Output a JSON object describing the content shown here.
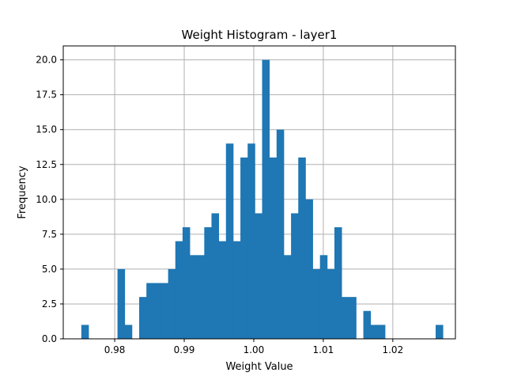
{
  "chart_data": {
    "type": "bar",
    "title": "Weight Histogram - layer1",
    "xlabel": "Weight Value",
    "ylabel": "Frequency",
    "xlim": [
      0.9726,
      1.029
    ],
    "ylim": [
      0,
      21
    ],
    "grid": true,
    "color": "#1f77b4",
    "bin_start": 0.9752,
    "bin_width": 0.00104,
    "counts": [
      1,
      0,
      0,
      0,
      0,
      5,
      1,
      0,
      3,
      4,
      4,
      4,
      5,
      7,
      8,
      6,
      6,
      8,
      9,
      7,
      14,
      7,
      13,
      14,
      9,
      20,
      13,
      15,
      6,
      9,
      13,
      10,
      5,
      6,
      5,
      8,
      3,
      3,
      0,
      2,
      1,
      1,
      0,
      0,
      0,
      0,
      0,
      0,
      0,
      1
    ],
    "xticks": [
      {
        "value": 0.98,
        "label": "0.98"
      },
      {
        "value": 0.99,
        "label": "0.99"
      },
      {
        "value": 1.0,
        "label": "1.00"
      },
      {
        "value": 1.01,
        "label": "1.01"
      },
      {
        "value": 1.02,
        "label": "1.02"
      }
    ],
    "yticks": [
      {
        "value": 0.0,
        "label": "0.0"
      },
      {
        "value": 2.5,
        "label": "2.5"
      },
      {
        "value": 5.0,
        "label": "5.0"
      },
      {
        "value": 7.5,
        "label": "7.5"
      },
      {
        "value": 10.0,
        "label": "10.0"
      },
      {
        "value": 12.5,
        "label": "12.5"
      },
      {
        "value": 15.0,
        "label": "15.0"
      },
      {
        "value": 17.5,
        "label": "17.5"
      },
      {
        "value": 20.0,
        "label": "20.0"
      }
    ]
  }
}
